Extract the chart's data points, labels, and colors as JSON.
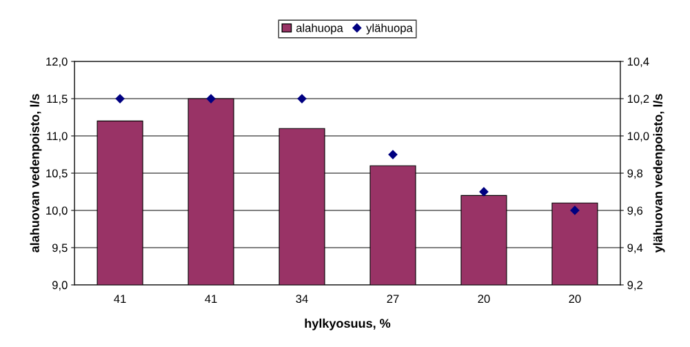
{
  "chart_data": {
    "type": "bar",
    "xlabel": "hylkyosuus, %",
    "ylabel": "alahuovan vedenpoisto, l/s",
    "y2label": "ylähuovan vedenpoisto, l/s",
    "categories": [
      "41",
      "41",
      "34",
      "27",
      "20",
      "20"
    ],
    "series": [
      {
        "name": "alahuopa",
        "color": "#993366",
        "values": [
          11.2,
          11.5,
          11.1,
          10.6,
          10.2,
          10.1
        ]
      },
      {
        "name": "ylähuopa",
        "type": "scatter",
        "axis": "y2",
        "color": "#000080",
        "marker": "diamond",
        "values": [
          10.2,
          10.2,
          10.2,
          9.9,
          9.7,
          9.6
        ]
      }
    ],
    "ylim": [
      9.0,
      12.0
    ],
    "yticks": [
      {
        "value": 9.0,
        "label": "9,0"
      },
      {
        "value": 9.5,
        "label": "9,5"
      },
      {
        "value": 10.0,
        "label": "10,0"
      },
      {
        "value": 10.5,
        "label": "10,5"
      },
      {
        "value": 11.0,
        "label": "11,0"
      },
      {
        "value": 11.5,
        "label": "11,5"
      },
      {
        "value": 12.0,
        "label": "12,0"
      }
    ],
    "y2lim": [
      9.2,
      10.4
    ],
    "y2ticks": [
      {
        "value": 9.2,
        "label": "9,2"
      },
      {
        "value": 9.4,
        "label": "9,4"
      },
      {
        "value": 9.6,
        "label": "9,6"
      },
      {
        "value": 9.8,
        "label": "9,8"
      },
      {
        "value": 10.0,
        "label": "10,0"
      },
      {
        "value": 10.2,
        "label": "10,2"
      },
      {
        "value": 10.4,
        "label": "10,4"
      }
    ],
    "grid": "y",
    "legend": "top"
  }
}
